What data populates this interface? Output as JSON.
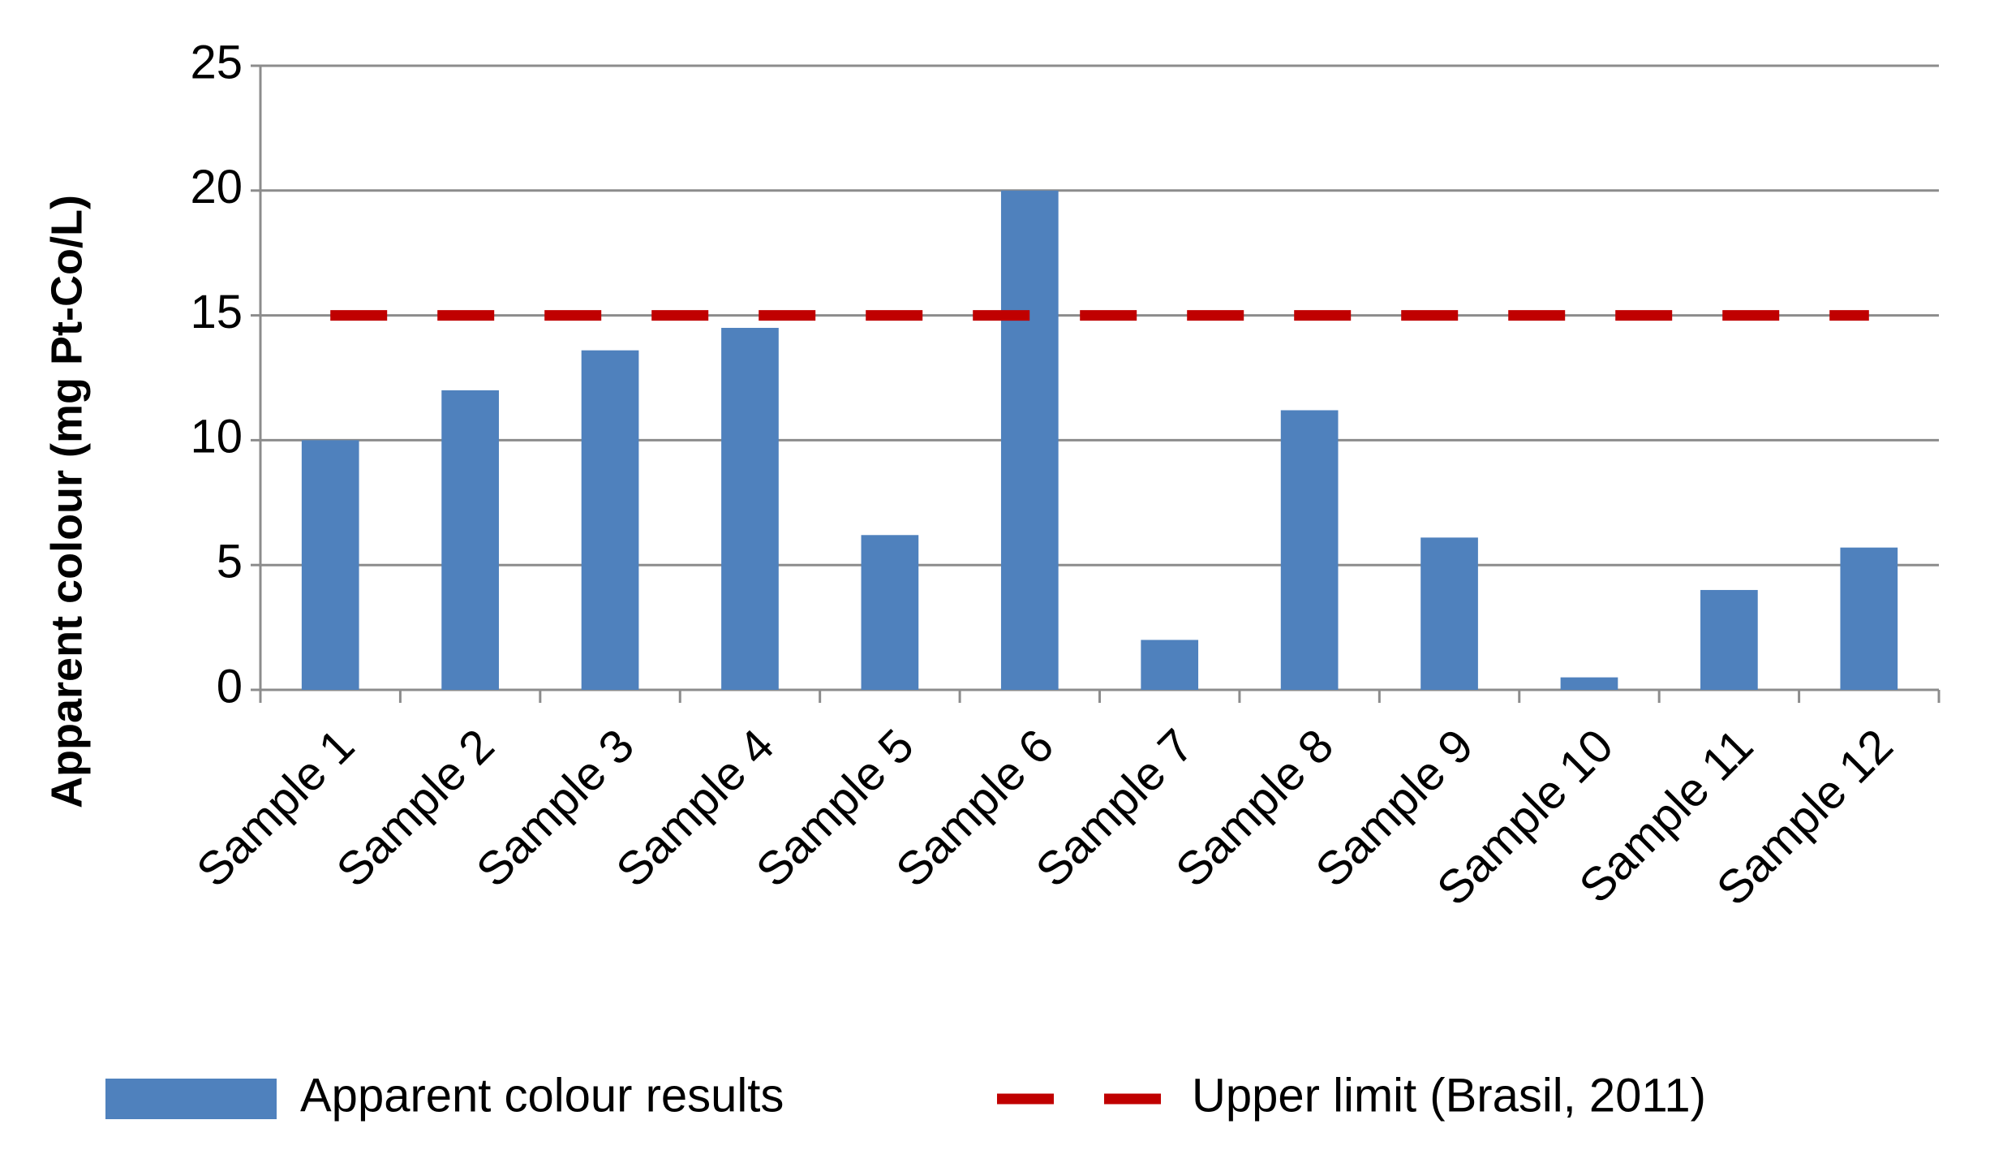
{
  "chart_data": {
    "type": "bar",
    "y_label": "Apparent colour (mg Pt-Co/L)",
    "categories": [
      "Sample 1",
      "Sample 2",
      "Sample 3",
      "Sample 4",
      "Sample 5",
      "Sample 6",
      "Sample 7",
      "Sample 8",
      "Sample 9",
      "Sample 10",
      "Sample 11",
      "Sample 12"
    ],
    "series": [
      {
        "name": "Apparent colour results",
        "type": "bar",
        "color": "#4f81bd",
        "values": [
          10,
          12,
          13.6,
          14.5,
          6.2,
          20,
          2,
          11.2,
          6.1,
          0.5,
          4,
          5.7
        ]
      },
      {
        "name": "Upper limit (Brasil, 2011)",
        "type": "line",
        "dashed": true,
        "color": "#c00000",
        "values": [
          15,
          15,
          15,
          15,
          15,
          15,
          15,
          15,
          15,
          15,
          15,
          15
        ]
      }
    ],
    "ylim": [
      0,
      25
    ],
    "yticks": [
      0,
      5,
      10,
      15,
      20,
      25
    ],
    "grid": true,
    "legend": "bottom"
  }
}
